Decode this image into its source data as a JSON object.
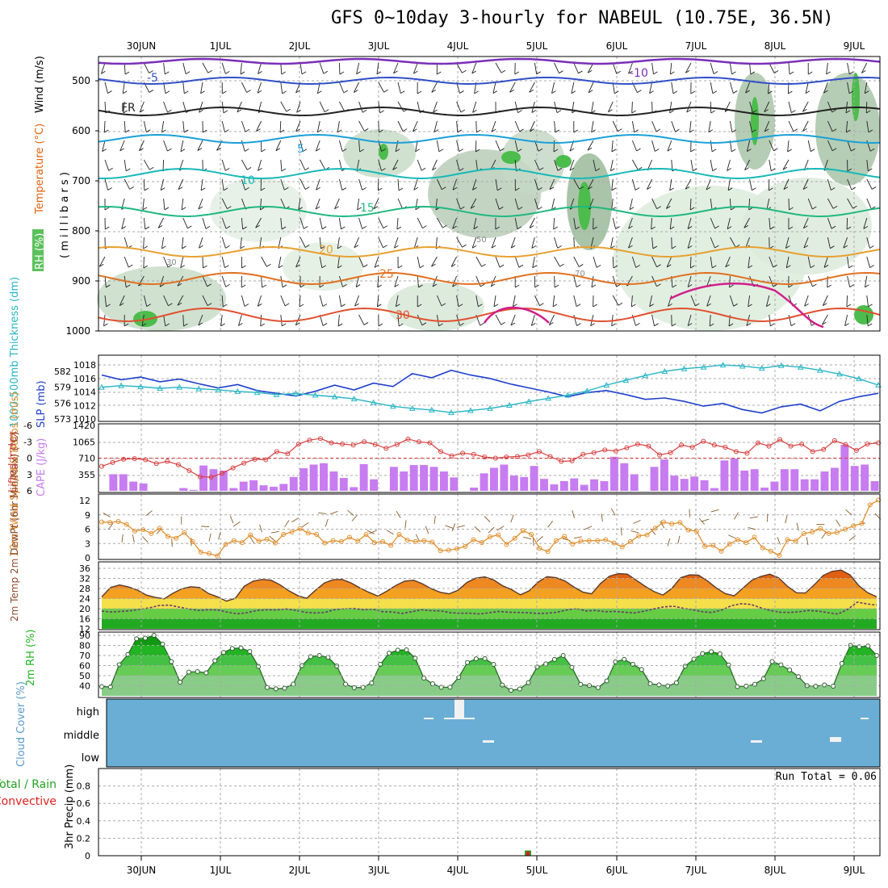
{
  "title": "GFS 0~10day 3-hourly for NABEUL (10.75E, 36.5N)",
  "dates": [
    "30JUN",
    "1JUL",
    "2JUL",
    "3JUL",
    "4JUL",
    "5JUL",
    "6JUL",
    "7JUL",
    "8JUL",
    "9JUL"
  ],
  "colors": {
    "temp_high": "#e06010",
    "temp_mid": "#f4a020",
    "temp_yellow": "#f4e04a",
    "rh_green": "#22b422",
    "cloud_bg": "#6aaed6",
    "cape": "#c77cf0",
    "li": "#d94040",
    "slp": "#1f3fcc",
    "thick": "#27b5c4",
    "wind": "#e09030",
    "precip_red": "#e02020",
    "precip_green": "#22a022"
  },
  "chart_data": [
    {
      "type": "contour",
      "panel": "upper-air",
      "ylabel_parts": [
        "RH (%)",
        "Temperature (°C)",
        "Wind (m/s)"
      ],
      "yaxis_label": "( m i l l i b a r s )",
      "y_ticks": [
        500,
        600,
        700,
        800,
        900,
        1000
      ],
      "temperature_labels": [
        "-10",
        "-5",
        "FR",
        "5",
        "10",
        "15",
        "20",
        "25",
        "30"
      ],
      "rh_labels": [
        "30",
        "50",
        "70"
      ]
    },
    {
      "type": "line",
      "panel": "thickness-slp",
      "ylabel_left": "1000-500mb Thickness (dm)",
      "ylabel_right": "SLP (mb)",
      "left_ticks": [
        573,
        576,
        579,
        582
      ],
      "right_ticks": [
        1010,
        1012,
        1014,
        1016,
        1018
      ],
      "series": [
        {
          "name": "SLP (mb)",
          "values": [
            1016.5,
            1015.8,
            1016.2,
            1015.5,
            1015.9,
            1015.2,
            1014.6,
            1015.1,
            1014.2,
            1013.8,
            1013.4,
            1014.1,
            1015.0,
            1014.3,
            1015.3,
            1014.8,
            1016.7,
            1016.1,
            1017.2,
            1016.5,
            1016.0,
            1015.2,
            1014.6,
            1014.0,
            1013.3,
            1013.9,
            1014.2,
            1013.6,
            1012.9,
            1013.1,
            1012.6,
            1011.9,
            1012.3,
            1011.4,
            1010.9,
            1011.8,
            1012.2,
            1011.2,
            1012.6,
            1013.3,
            1013.8
          ]
        },
        {
          "name": "1000-500mb Thickness (dm)",
          "values": [
            579.0,
            579.3,
            579.1,
            578.8,
            579.0,
            578.7,
            578.5,
            578.2,
            578.0,
            577.6,
            577.8,
            577.5,
            577.2,
            576.8,
            576.1,
            575.4,
            575.0,
            574.7,
            574.2,
            574.6,
            575.0,
            575.6,
            576.3,
            576.9,
            577.5,
            578.3,
            579.4,
            580.3,
            581.2,
            582.0,
            582.5,
            582.8,
            583.2,
            583.0,
            582.6,
            583.1,
            582.8,
            582.2,
            581.5,
            580.6,
            579.4
          ]
        }
      ]
    },
    {
      "type": "bar",
      "panel": "cape-lifted-index",
      "ylabel_left": "Lifted Index",
      "ylabel_right": "CAPE (J/kg)",
      "li_ticks": [
        6,
        3,
        0,
        -3,
        -6
      ],
      "cape_ticks": [
        355,
        710,
        1065,
        1420
      ],
      "series": [
        {
          "name": "CAPE (J/kg)",
          "values": [
            0,
            60,
            360,
            390,
            360,
            160,
            200,
            160,
            160,
            20,
            0,
            0,
            0,
            0,
            0,
            40,
            60,
            30,
            20,
            280,
            550,
            410,
            470,
            500,
            440,
            300,
            60,
            90,
            200,
            280,
            230,
            160,
            120,
            110,
            90,
            130,
            150,
            140,
            300,
            340,
            490,
            600,
            570,
            600,
            600,
            400,
            420,
            280,
            280,
            320,
            80,
            280,
            580,
            570,
            250,
            220,
            0,
            230,
            520,
            470,
            420,
            510,
            560,
            620,
            560,
            580,
            520,
            440,
            420,
            440,
            290,
            130,
            0,
            0,
            70,
            190,
            380,
            400,
            500,
            440,
            570,
            420,
            330,
            380,
            300,
            470,
            540,
            380,
            260,
            150,
            140,
            160,
            210,
            420,
            270,
            110,
            130,
            140,
            250,
            220,
            210,
            410,
            740,
            660,
            600,
            800,
            360,
            80,
            0,
            180,
            520,
            640,
            680,
            460,
            330,
            280,
            260,
            490,
            310,
            350,
            230,
            80,
            60,
            600,
            660,
            630,
            700,
            570,
            440,
            440,
            470,
            130,
            70,
            60,
            200,
            190,
            470,
            440,
            470,
            470,
            250,
            230,
            250,
            340,
            420,
            500,
            500,
            600,
            1000,
            1030,
            540,
            640,
            570,
            540,
            210,
            130
          ]
        },
        {
          "name": "Lifted Index",
          "values": [
            1.5,
            0.8,
            0.2,
            0.1,
            0.3,
            1.0,
            0.6,
            1.2,
            2.3,
            3.4,
            3.5,
            2.8,
            1.8,
            0.9,
            0.2,
            0.3,
            -1.2,
            -0.8,
            -2.6,
            -3.3,
            -3.6,
            -2.8,
            -2.6,
            -2.4,
            -3.0,
            -2.5,
            -1.8,
            -2.5,
            -3.5,
            -3.0,
            -2.8,
            -1.2,
            -0.4,
            -0.9,
            -0.7,
            -0.2,
            0.0,
            -0.2,
            -0.3,
            -0.6,
            -1.2,
            -0.3,
            0.6,
            0.5,
            -0.7,
            -1.0,
            -1.5,
            -1.3,
            -1.9,
            -2.6,
            -2.2,
            -0.6,
            -1.0,
            -2.4,
            -2.0,
            -3.1,
            -2.4,
            -2.0,
            -1.2,
            -0.9,
            -2.8,
            -2.2,
            -3.4,
            -2.2,
            -2.6,
            -1.2,
            -1.6,
            -3.2,
            -2.5,
            -1.4,
            -2.6,
            -2.8
          ]
        }
      ]
    },
    {
      "type": "line",
      "panel": "10m-wind",
      "ylabel": "10m Wind Speed & Barbs (m/s)",
      "y_ticks": [
        0,
        3,
        6,
        9,
        12
      ],
      "series": [
        {
          "name": "10m Wind Speed",
          "values": [
            7.5,
            7.4,
            7.6,
            7.0,
            5.6,
            5.9,
            5.1,
            6.2,
            4.5,
            4.1,
            5.3,
            3.4,
            1.2,
            0.9,
            0.4,
            2.8,
            3.6,
            3.2,
            4.8,
            3.5,
            3.9,
            3.1,
            4.9,
            5.4,
            6.1,
            5.2,
            4.9,
            3.1,
            3.6,
            3.4,
            4.3,
            3.5,
            4.9,
            3.2,
            3.4,
            2.6,
            4.9,
            3.7,
            3.4,
            3.6,
            3.3,
            1.5,
            1.6,
            1.9,
            2.4,
            3.8,
            3.2,
            4.4,
            4.8,
            2.8,
            4.1,
            5.7,
            4.9,
            2.0,
            1.3,
            3.6,
            4.5,
            2.9,
            3.5,
            3.6,
            3.6,
            3.8,
            3.1,
            2.3,
            3.4,
            4.6,
            4.8,
            6.2,
            7.5,
            7.1,
            7.4,
            5.8,
            5.6,
            2.4,
            2.6,
            1.4,
            2.9,
            3.8,
            3.2,
            4.3,
            2.1,
            1.4,
            0.5,
            3.8,
            3.5,
            5.1,
            5.4,
            6.1,
            5.1,
            5.3,
            6.0,
            6.7,
            7.2,
            11.1,
            12.1
          ]
        }
      ]
    },
    {
      "type": "area",
      "panel": "2m-temp",
      "ylabel": "2m Temp 2m DewPt (6hr Min/Max) (°C)",
      "y_ticks": [
        12,
        16,
        20,
        24,
        28,
        32,
        36
      ],
      "series": [
        {
          "name": "2m Temp",
          "values": [
            24.7,
            28.4,
            29.4,
            28.6,
            27.4,
            25.4,
            24.5,
            23.9,
            26.1,
            27.9,
            28.7,
            28.4,
            26.0,
            24.7,
            23.0,
            24.1,
            28.9,
            30.9,
            31.6,
            31.3,
            29.5,
            27.1,
            25.2,
            24.1,
            27.3,
            30.2,
            31.5,
            31.6,
            30.2,
            28.2,
            26.5,
            25.0,
            26.9,
            29.2,
            30.9,
            31.3,
            29.9,
            27.9,
            26.5,
            25.9,
            27.3,
            30.4,
            32.1,
            32.6,
            31.4,
            29.1,
            27.6,
            25.5,
            27.1,
            30.6,
            32.7,
            32.3,
            31.0,
            28.6,
            26.6,
            25.9,
            30.0,
            32.9,
            33.9,
            33.7,
            31.3,
            28.9,
            26.8,
            25.4,
            28.0,
            32.3,
            33.4,
            33.3,
            31.0,
            28.2,
            26.0,
            25.1,
            28.2,
            31.3,
            32.8,
            33.7,
            32.2,
            28.8,
            26.3,
            26.2,
            29.5,
            33.2,
            34.8,
            35.3,
            33.4,
            29.1,
            26.3,
            24.7
          ]
        },
        {
          "name": "2m DewPt",
          "values": [
            19.0,
            18.7,
            18.9,
            19.2,
            19.8,
            20.4,
            21.3,
            21.4,
            20.6,
            19.9,
            19.3,
            19.6,
            19.5,
            18.6,
            18.0,
            18.4,
            19.3,
            19.6,
            19.5,
            19.9,
            19.4,
            18.6,
            18.3,
            18.5,
            19.6,
            20.0,
            20.1,
            19.6,
            19.8,
            18.8,
            18.7,
            18.1,
            18.8,
            19.6,
            19.2,
            19.1,
            18.4,
            18.2,
            18.2,
            17.9,
            18.4,
            18.9,
            18.6,
            18.5,
            18.4,
            18.1,
            18.2,
            18.6,
            19.5,
            20.1,
            19.1,
            19.3,
            18.8,
            18.9,
            18.6,
            18.3,
            19.0,
            19.9,
            20.7,
            21.0,
            20.2,
            19.6,
            18.8,
            18.5,
            19.5,
            21.2,
            22.0,
            21.7,
            20.4,
            19.3,
            18.6,
            18.5,
            18.8,
            19.3,
            19.0,
            18.4,
            17.9,
            19.7,
            22.6,
            21.9,
            21.4
          ]
        }
      ]
    },
    {
      "type": "area",
      "panel": "2m-rh",
      "ylabel": "2m RH (%)",
      "y_ticks": [
        40,
        50,
        60,
        70,
        80,
        90
      ],
      "series": [
        {
          "name": "2m RH",
          "values": [
            39.2,
            38.9,
            60.8,
            71.0,
            86.6,
            87.2,
            90.0,
            81.2,
            64.0,
            43.6,
            53.6,
            54.0,
            52.8,
            64.8,
            73.0,
            77.0,
            77.5,
            74.0,
            59.2,
            38.3,
            37.0,
            37.6,
            41.7,
            60.0,
            68.8,
            70.0,
            68.2,
            59.6,
            41.6,
            38.1,
            38.4,
            42.8,
            61.2,
            72.4,
            75.3,
            75.6,
            67.3,
            47.6,
            42.0,
            38.5,
            38.6,
            48.3,
            63.1,
            66.7,
            66.9,
            61.2,
            40.7,
            35.5,
            36.8,
            43.1,
            58.6,
            61.7,
            66.1,
            70.0,
            58.2,
            41.4,
            40.2,
            38.2,
            44.8,
            63.8,
            66.2,
            61.3,
            56.1,
            42.0,
            40.9,
            39.8,
            43.0,
            59.4,
            66.4,
            71.9,
            73.8,
            71.7,
            60.6,
            39.2,
            39.7,
            41.5,
            47.0,
            64.0,
            60.7,
            55.7,
            49.1,
            40.1,
            39.6,
            40.8,
            39.6,
            62.1,
            80.1,
            78.6,
            79.4,
            70.0
          ]
        }
      ]
    },
    {
      "type": "heatmap",
      "panel": "cloud-cover",
      "ylabel": "Cloud Cover (%)",
      "levels": [
        "high",
        "middle",
        "low"
      ]
    },
    {
      "type": "bar",
      "panel": "precip",
      "ylabel": "3hr Precip (mm)",
      "legend_lines": [
        "Total / Rain",
        "Convective"
      ],
      "y_ticks": [
        0,
        0.2,
        0.4,
        0.6,
        0.8
      ],
      "run_total": "Run Total = 0.06",
      "series": [
        {
          "name": "Total / Rain",
          "x": "4JUL-5JUL",
          "value": 0.06
        }
      ]
    }
  ]
}
